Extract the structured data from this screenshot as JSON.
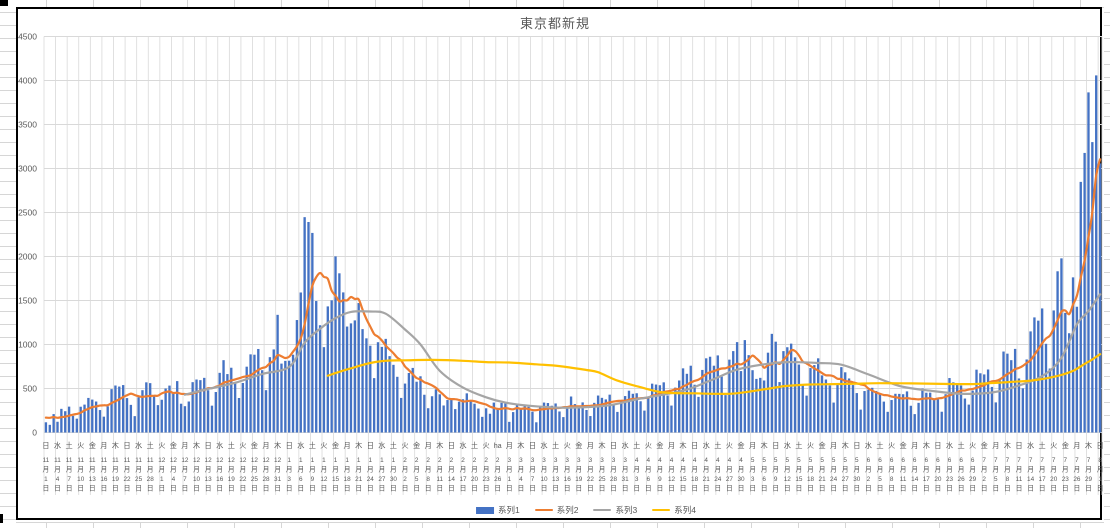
{
  "chart_data": {
    "type": "bar+line combo",
    "title": "東京都新規",
    "x_start": "11月1日",
    "x_end": "8月1日",
    "x_tick_interval_days": 3,
    "ylim": [
      0,
      4500
    ],
    "y_tick_step": 500,
    "y_ticks": [
      0,
      500,
      1000,
      1500,
      2000,
      2500,
      3000,
      3500,
      4000,
      4500
    ],
    "grid": true,
    "legend_position": "bottom",
    "colors": {
      "bar": "#4472C4",
      "line2": "#ED7D31",
      "line3": "#A5A5A5",
      "line4": "#FFC000",
      "gridline": "#D9D9D9",
      "axis_text": "#595959",
      "title_text": "#595959",
      "frame_border": "#000000"
    },
    "x_tick_labels": [
      [
        "日",
        11,
        1
      ],
      [
        "水",
        11,
        4
      ],
      [
        "土",
        11,
        7
      ],
      [
        "火",
        11,
        10
      ],
      [
        "金",
        11,
        13
      ],
      [
        "月",
        11,
        16
      ],
      [
        "木",
        11,
        19
      ],
      [
        "日",
        11,
        22
      ],
      [
        "水",
        11,
        25
      ],
      [
        "土",
        11,
        28
      ],
      [
        "火",
        12,
        1
      ],
      [
        "金",
        12,
        4
      ],
      [
        "月",
        12,
        7
      ],
      [
        "木",
        12,
        10
      ],
      [
        "日",
        12,
        13
      ],
      [
        "水",
        12,
        16
      ],
      [
        "土",
        12,
        19
      ],
      [
        "火",
        12,
        22
      ],
      [
        "金",
        12,
        25
      ],
      [
        "月",
        12,
        28
      ],
      [
        "木",
        12,
        31
      ],
      [
        "日",
        1,
        3
      ],
      [
        "水",
        1,
        6
      ],
      [
        "土",
        1,
        9
      ],
      [
        "火",
        1,
        12
      ],
      [
        "金",
        1,
        15
      ],
      [
        "月",
        1,
        18
      ],
      [
        "木",
        1,
        21
      ],
      [
        "日",
        1,
        24
      ],
      [
        "水",
        1,
        27
      ],
      [
        "土",
        1,
        30
      ],
      [
        "火",
        2,
        2
      ],
      [
        "金",
        2,
        5
      ],
      [
        "月",
        2,
        8
      ],
      [
        "木",
        2,
        11
      ],
      [
        "日",
        2,
        14
      ],
      [
        "水",
        2,
        17
      ],
      [
        "土",
        2,
        20
      ],
      [
        "火",
        2,
        23
      ],
      [
        "ha",
        2,
        26
      ],
      [
        "月",
        3,
        1
      ],
      [
        "木",
        3,
        4
      ],
      [
        "日",
        3,
        7
      ],
      [
        "水",
        3,
        10
      ],
      [
        "土",
        3,
        13
      ],
      [
        "火",
        3,
        16
      ],
      [
        "金",
        3,
        19
      ],
      [
        "月",
        3,
        22
      ],
      [
        "木",
        3,
        25
      ],
      [
        "日",
        3,
        28
      ],
      [
        "水",
        3,
        31
      ],
      [
        "土",
        4,
        3
      ],
      [
        "火",
        4,
        6
      ],
      [
        "金",
        4,
        9
      ],
      [
        "月",
        4,
        12
      ],
      [
        "木",
        4,
        15
      ],
      [
        "日",
        4,
        18
      ],
      [
        "水",
        4,
        21
      ],
      [
        "土",
        4,
        24
      ],
      [
        "火",
        4,
        27
      ],
      [
        "金",
        4,
        30
      ],
      [
        "月",
        5,
        3
      ],
      [
        "木",
        5,
        6
      ],
      [
        "日",
        5,
        9
      ],
      [
        "水",
        5,
        12
      ],
      [
        "土",
        5,
        15
      ],
      [
        "火",
        5,
        18
      ],
      [
        "金",
        5,
        21
      ],
      [
        "月",
        5,
        24
      ],
      [
        "木",
        5,
        27
      ],
      [
        "日",
        5,
        30
      ],
      [
        "水",
        6,
        2
      ],
      [
        "土",
        6,
        5
      ],
      [
        "火",
        6,
        8
      ],
      [
        "金",
        6,
        11
      ],
      [
        "月",
        6,
        14
      ],
      [
        "木",
        6,
        17
      ],
      [
        "日",
        6,
        20
      ],
      [
        "水",
        6,
        23
      ],
      [
        "土",
        6,
        26
      ],
      [
        "火",
        6,
        29
      ],
      [
        "金",
        7,
        2
      ],
      [
        "月",
        7,
        5
      ],
      [
        "木",
        7,
        8
      ],
      [
        "日",
        7,
        11
      ],
      [
        "水",
        7,
        14
      ],
      [
        "土",
        7,
        17
      ],
      [
        "火",
        7,
        20
      ],
      [
        "金",
        7,
        23
      ],
      [
        "月",
        7,
        26
      ],
      [
        "木",
        7,
        29
      ],
      [
        "日",
        8,
        1
      ]
    ],
    "series": [
      {
        "name": "系列1",
        "type": "bar",
        "color": "#4472C4",
        "values": [
          116,
          87,
          209,
          122,
          269,
          242,
          294,
          189,
          157,
          293,
          317,
          393,
          374,
          352,
          255,
          180,
          298,
          493,
          534,
          522,
          539,
          391,
          314,
          186,
          401,
          481,
          570,
          561,
          418,
          311,
          372,
          500,
          533,
          449,
          584,
          327,
          299,
          352,
          572,
          602,
          595,
          621,
          480,
          305,
          460,
          678,
          822,
          664,
          736,
          556,
          392,
          563,
          748,
          888,
          884,
          949,
          708,
          481,
          856,
          944,
          1337,
          783,
          814,
          816,
          884,
          1278,
          1591,
          2447,
          2392,
          2268,
          1494,
          1219,
          970,
          1433,
          1502,
          2001,
          1809,
          1592,
          1204,
          1240,
          1274,
          1471,
          1175,
          1070,
          986,
          618,
          1026,
          973,
          1064,
          868,
          769,
          633,
          393,
          556,
          676,
          734,
          577,
          639,
          429,
          276,
          412,
          491,
          434,
          307,
          369,
          371,
          266,
          350,
          378,
          445,
          353,
          327,
          272,
          178,
          275,
          213,
          340,
          270,
          337,
          329,
          121,
          232,
          316,
          279,
          301,
          293,
          237,
          116,
          290,
          340,
          335,
          304,
          330,
          239,
          175,
          300,
          409,
          323,
          303,
          342,
          256,
          187,
          337,
          420,
          394,
          376,
          430,
          313,
          234,
          364,
          414,
          475,
          440,
          446,
          355,
          249,
          399,
          555,
          545,
          537,
          570,
          421,
          306,
          510,
          591,
          729,
          667,
          759,
          543,
          405,
          711,
          843,
          861,
          759,
          876,
          635,
          425,
          828,
          925,
          1027,
          698,
          1050,
          879,
          708,
          609,
          621,
          591,
          907,
          1121,
          1032,
          573,
          925,
          969,
          1010,
          854,
          772,
          542,
          419,
          732,
          766,
          843,
          649,
          602,
          535,
          340,
          542,
          743,
          684,
          614,
          539,
          448,
          260,
          471,
          487,
          508,
          472,
          436,
          351,
          235,
          369,
          440,
          439,
          435,
          467,
          304,
          209,
          337,
          501,
          452,
          453,
          388,
          376,
          236,
          435,
          619,
          570,
          562,
          534,
          386,
          317,
          476,
          714,
          673,
          660,
          716,
          518,
          342,
          593,
          920,
          896,
          822,
          950,
          614,
          502,
          830,
          1149,
          1308,
          1271,
          1410,
          1008,
          727,
          1387,
          1832,
          1979,
          1359,
          1128,
          1763,
          1429,
          2848,
          3177,
          3865,
          3300,
          4058,
          3058
        ]
      },
      {
        "name": "系列2",
        "type": "line",
        "color": "#ED7D31",
        "derived": "7-day trailing moving average of 系列1",
        "prior_week_seed": [
          102,
          158,
          171,
          221,
          203,
          215
        ]
      },
      {
        "name": "系列3",
        "type": "line",
        "color": "#A5A5A5",
        "points": [
          [
            36,
            430
          ],
          [
            42,
            495
          ],
          [
            49,
            565
          ],
          [
            56,
            665
          ],
          [
            63,
            745
          ],
          [
            67,
            1020
          ],
          [
            71,
            1180
          ],
          [
            75,
            1300
          ],
          [
            79,
            1370
          ],
          [
            84,
            1375
          ],
          [
            88,
            1350
          ],
          [
            93,
            1170
          ],
          [
            97,
            1000
          ],
          [
            102,
            700
          ],
          [
            108,
            510
          ],
          [
            114,
            400
          ],
          [
            119,
            340
          ],
          [
            125,
            305
          ],
          [
            133,
            282
          ],
          [
            140,
            288
          ],
          [
            146,
            310
          ],
          [
            154,
            385
          ],
          [
            165,
            475
          ],
          [
            172,
            590
          ],
          [
            179,
            715
          ],
          [
            186,
            775
          ],
          [
            192,
            800
          ],
          [
            200,
            790
          ],
          [
            206,
            770
          ],
          [
            213,
            660
          ],
          [
            221,
            530
          ],
          [
            229,
            475
          ],
          [
            237,
            440
          ],
          [
            245,
            455
          ],
          [
            251,
            520
          ],
          [
            258,
            640
          ],
          [
            263,
            850
          ],
          [
            267,
            1230
          ],
          [
            270,
            1380
          ],
          [
            273,
            1570
          ]
        ]
      },
      {
        "name": "系列4",
        "type": "line",
        "color": "#FFC000",
        "points": [
          [
            73,
            645
          ],
          [
            76,
            690
          ],
          [
            79,
            730
          ],
          [
            84,
            790
          ],
          [
            88,
            815
          ],
          [
            93,
            820
          ],
          [
            100,
            825
          ],
          [
            108,
            815
          ],
          [
            114,
            800
          ],
          [
            120,
            795
          ],
          [
            127,
            775
          ],
          [
            133,
            755
          ],
          [
            140,
            710
          ],
          [
            143,
            685
          ],
          [
            148,
            590
          ],
          [
            154,
            515
          ],
          [
            160,
            455
          ],
          [
            168,
            445
          ],
          [
            177,
            440
          ],
          [
            183,
            470
          ],
          [
            188,
            505
          ],
          [
            192,
            530
          ],
          [
            198,
            545
          ],
          [
            204,
            550
          ],
          [
            210,
            555
          ],
          [
            216,
            560
          ],
          [
            224,
            558
          ],
          [
            232,
            552
          ],
          [
            240,
            550
          ],
          [
            245,
            562
          ],
          [
            250,
            575
          ],
          [
            255,
            590
          ],
          [
            259,
            615
          ],
          [
            263,
            655
          ],
          [
            266,
            700
          ],
          [
            269,
            780
          ],
          [
            271,
            830
          ],
          [
            273,
            890
          ]
        ]
      }
    ]
  }
}
